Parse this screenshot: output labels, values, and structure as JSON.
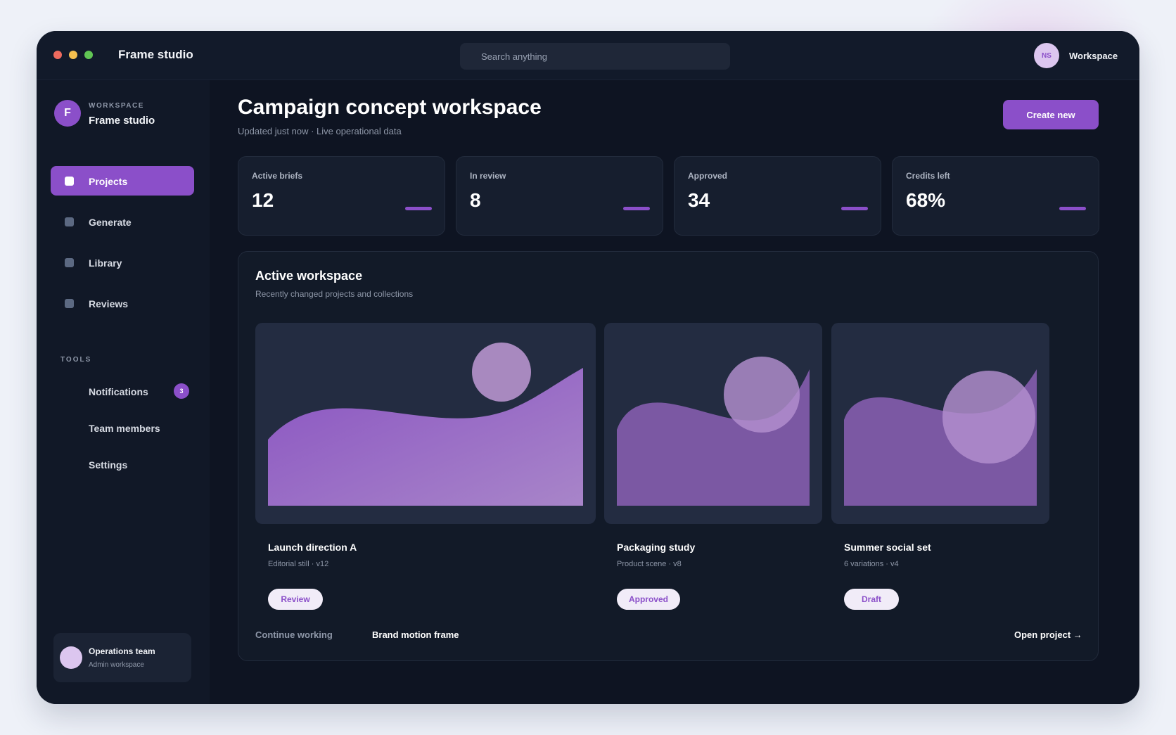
{
  "window": {
    "dots": [
      "close",
      "minimize",
      "maximize"
    ],
    "app_title": "Frame studio",
    "search_placeholder": "Search anything",
    "user_initials": "NS",
    "workspace_label": "Workspace"
  },
  "sidebar": {
    "workspace_kicker": "WORKSPACE",
    "workspace_initial": "F",
    "workspace_name": "Frame studio",
    "nav": [
      {
        "label": "Projects",
        "active": true
      },
      {
        "label": "Generate",
        "active": false
      },
      {
        "label": "Library",
        "active": false
      },
      {
        "label": "Reviews",
        "active": false
      }
    ],
    "tools_kicker": "TOOLS",
    "tools": [
      {
        "label": "Notifications",
        "badge": "3"
      },
      {
        "label": "Team members"
      },
      {
        "label": "Settings"
      }
    ],
    "team": {
      "name": "Operations team",
      "sub": "Admin workspace"
    }
  },
  "main": {
    "title": "Campaign concept workspace",
    "subtitle": "Updated just now · Live operational data",
    "create_button": "Create new",
    "stats": [
      {
        "label": "Active briefs",
        "value": "12"
      },
      {
        "label": "In review",
        "value": "8"
      },
      {
        "label": "Approved",
        "value": "34"
      },
      {
        "label": "Credits left",
        "value": "68%"
      }
    ],
    "panel": {
      "title": "Active workspace",
      "subtitle": "Recently changed projects and collections",
      "cards": [
        {
          "title": "Launch direction A",
          "meta": "Editorial still · v12",
          "status": "Review"
        },
        {
          "title": "Packaging study",
          "meta": "Product scene · v8",
          "status": "Approved"
        },
        {
          "title": "Summer social set",
          "meta": "6 variations · v4",
          "status": "Draft"
        }
      ],
      "continue_label": "Continue working",
      "current_item": "Brand motion frame",
      "open_link": "Open project →"
    }
  },
  "colors": {
    "accent": "#8b4fc9",
    "window_bg": "#0e1422",
    "panel_bg": "#121a28",
    "page_bg": "#eef1f8"
  }
}
